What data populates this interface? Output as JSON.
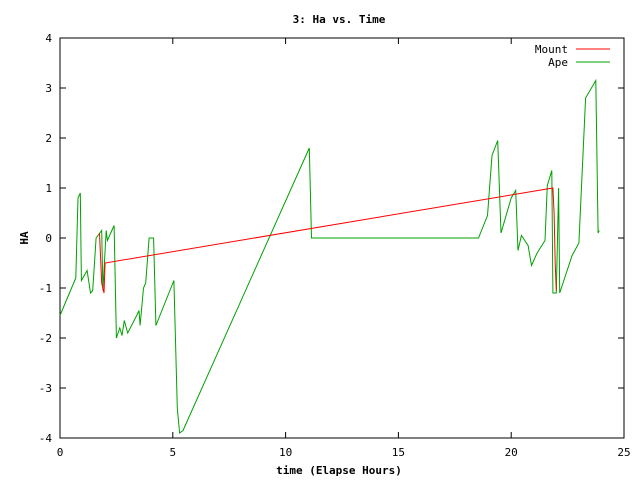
{
  "chart_data": {
    "type": "line",
    "title": "3: Ha vs. Time",
    "xlabel": "time (Elapse Hours)",
    "ylabel": "HA",
    "xlim": [
      0,
      25
    ],
    "ylim": [
      -4,
      4
    ],
    "x_ticks": [
      0,
      5,
      10,
      15,
      20,
      25
    ],
    "y_ticks": [
      -4,
      -3,
      -2,
      -1,
      0,
      1,
      2,
      3,
      4
    ],
    "grid": false,
    "legend_position": "top-right",
    "series": [
      {
        "name": "Mount",
        "color": "#ff0000",
        "points": [
          [
            1.75,
            0.1
          ],
          [
            1.85,
            -0.9
          ],
          [
            1.95,
            -1.1
          ],
          [
            2.0,
            -0.5
          ],
          [
            21.85,
            1.0
          ],
          [
            21.9,
            0.5
          ],
          [
            21.95,
            -0.5
          ],
          [
            22.0,
            -1.05
          ]
        ]
      },
      {
        "name": "Ape",
        "color": "#00a000",
        "points": [
          [
            0.0,
            -1.55
          ],
          [
            0.7,
            -0.8
          ],
          [
            0.8,
            0.8
          ],
          [
            0.9,
            0.9
          ],
          [
            0.95,
            -0.85
          ],
          [
            1.2,
            -0.65
          ],
          [
            1.35,
            -1.1
          ],
          [
            1.45,
            -1.05
          ],
          [
            1.6,
            0.0
          ],
          [
            1.85,
            0.15
          ],
          [
            1.9,
            -1.05
          ],
          [
            2.05,
            0.15
          ],
          [
            2.1,
            -0.05
          ],
          [
            2.4,
            0.25
          ],
          [
            2.5,
            -2.0
          ],
          [
            2.65,
            -1.8
          ],
          [
            2.75,
            -1.95
          ],
          [
            2.85,
            -1.65
          ],
          [
            3.0,
            -1.9
          ],
          [
            3.4,
            -1.55
          ],
          [
            3.5,
            -1.45
          ],
          [
            3.55,
            -1.75
          ],
          [
            3.7,
            -1.0
          ],
          [
            3.8,
            -0.9
          ],
          [
            3.95,
            0.0
          ],
          [
            4.15,
            0.0
          ],
          [
            4.25,
            -1.75
          ],
          [
            5.05,
            -0.85
          ],
          [
            5.2,
            -3.4
          ],
          [
            5.3,
            -3.9
          ],
          [
            5.45,
            -3.85
          ],
          [
            11.05,
            1.8
          ],
          [
            11.15,
            0.0
          ],
          [
            18.55,
            0.0
          ],
          [
            18.95,
            0.45
          ],
          [
            19.15,
            1.65
          ],
          [
            19.4,
            1.95
          ],
          [
            19.55,
            0.1
          ],
          [
            20.0,
            0.8
          ],
          [
            20.2,
            0.95
          ],
          [
            20.3,
            -0.25
          ],
          [
            20.45,
            0.05
          ],
          [
            20.75,
            -0.15
          ],
          [
            20.9,
            -0.55
          ],
          [
            21.15,
            -0.3
          ],
          [
            21.5,
            -0.05
          ],
          [
            21.6,
            1.05
          ],
          [
            21.8,
            1.35
          ],
          [
            21.85,
            -1.1
          ],
          [
            22.0,
            -1.1
          ],
          [
            22.1,
            1.0
          ],
          [
            22.15,
            -1.1
          ],
          [
            22.7,
            -0.35
          ],
          [
            23.0,
            -0.1
          ],
          [
            23.3,
            2.8
          ],
          [
            23.75,
            3.15
          ],
          [
            23.85,
            0.1
          ],
          [
            23.9,
            0.15
          ]
        ]
      }
    ]
  }
}
